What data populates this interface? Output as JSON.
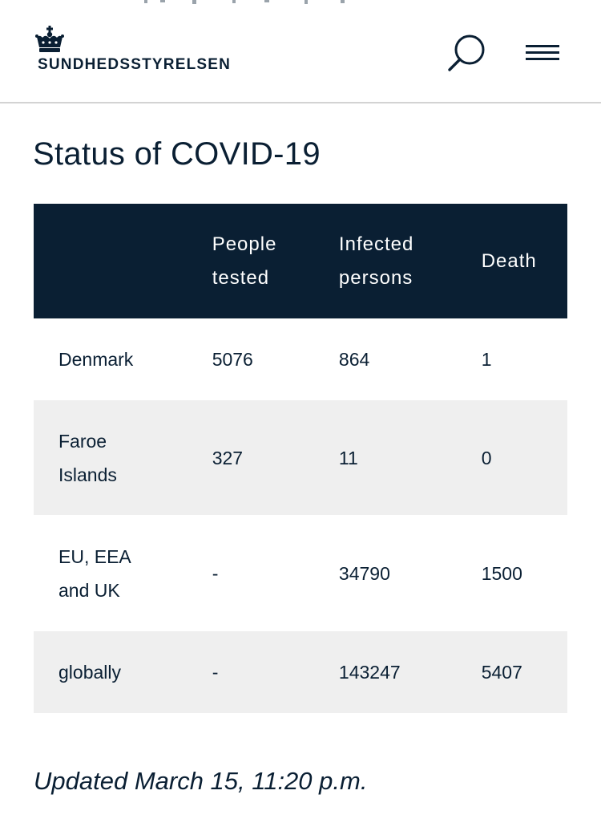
{
  "header": {
    "brand_text": "SUNDHEDSSTYRELSEN",
    "icons": {
      "logo": "crown-icon",
      "search": "search-icon",
      "menu": "hamburger-menu-icon"
    }
  },
  "page": {
    "title": "Status of COVID-19",
    "updated": "Updated March 15, 11:20 p.m."
  },
  "table": {
    "headers": {
      "region": "",
      "tested": "People tested",
      "infected": "Infected persons",
      "death": "Death"
    },
    "rows": [
      {
        "region": "Denmark",
        "tested": "5076",
        "infected": "864",
        "death": "1"
      },
      {
        "region": "Faroe Islands",
        "tested": "327",
        "infected": "11",
        "death": "0"
      },
      {
        "region": "EU, EEA and UK",
        "tested": "-",
        "infected": "34790",
        "death": "1500"
      },
      {
        "region": "globally",
        "tested": "-",
        "infected": "143247",
        "death": "5407"
      }
    ]
  },
  "colors": {
    "navy": "#0a1f33",
    "row_alt": "#efefef",
    "divider": "#d3d3d3"
  }
}
